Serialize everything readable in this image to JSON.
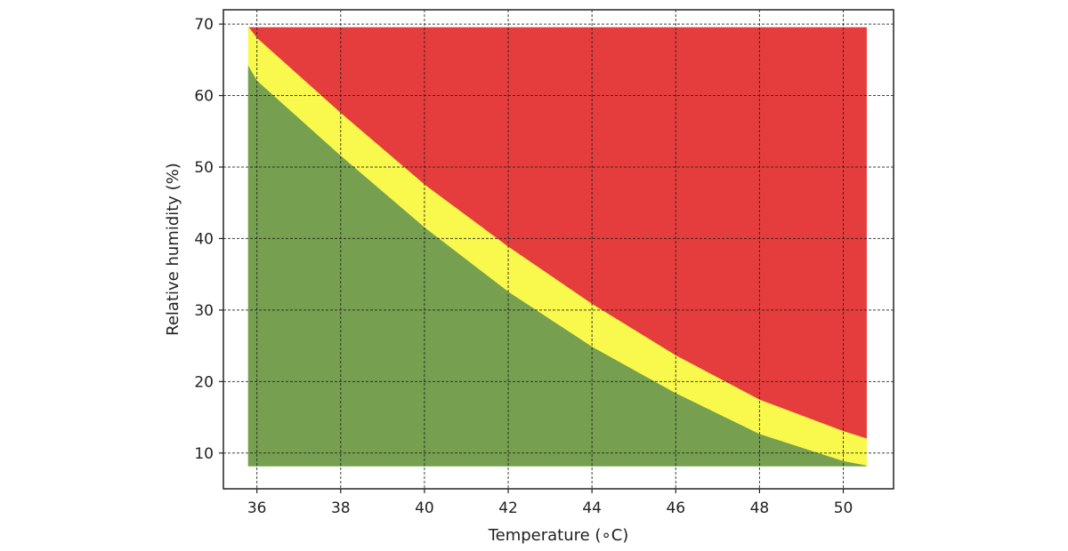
{
  "chart_data": {
    "type": "area",
    "title": "",
    "xlabel": "Temperature (∘C)",
    "ylabel": "Relative humidity (%)",
    "xlim": [
      35.2,
      51.2
    ],
    "ylim": [
      5,
      72
    ],
    "xticks": [
      36,
      38,
      40,
      42,
      44,
      46,
      48,
      50
    ],
    "yticks": [
      10,
      20,
      30,
      40,
      50,
      60,
      70
    ],
    "grid": true,
    "x_range": [
      35.8,
      50.55
    ],
    "y_range": [
      8.2,
      69.5
    ],
    "colors": {
      "green": "#76a050",
      "yellow": "#f9f84c",
      "red": "#e53d3d"
    },
    "series": [
      {
        "x": [
          35.8,
          36,
          38,
          40,
          42,
          44,
          46,
          48,
          50,
          50.55
        ],
        "values": [
          64.0,
          62.0,
          51.5,
          41.5,
          32.5,
          24.8,
          18.3,
          12.6,
          8.8,
          8.2
        ]
      },
      {
        "x": [
          35.8,
          36,
          38,
          40,
          42,
          44,
          46,
          48,
          50,
          50.55
        ],
        "values": [
          69.5,
          68.0,
          57.5,
          47.5,
          38.8,
          30.8,
          23.6,
          17.4,
          13.0,
          12.0
        ]
      }
    ]
  }
}
